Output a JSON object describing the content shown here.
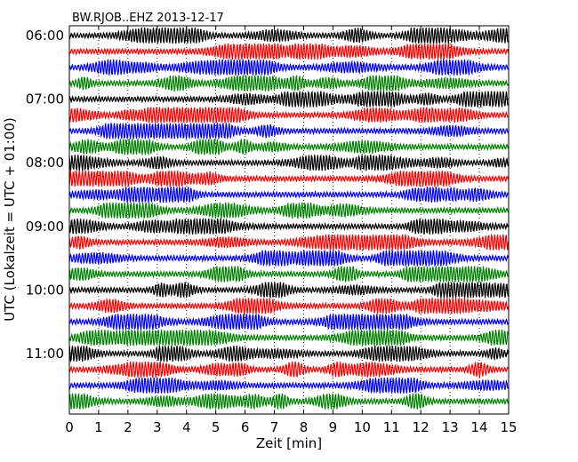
{
  "chart_data": {
    "type": "line",
    "title": "BW.RJOB..EHZ 2013-12-17",
    "xlabel": "Zeit  [min]",
    "ylabel": "UTC (Lokalzeit = UTC + 01:00)",
    "xlim": [
      0,
      15
    ],
    "x_ticks": [
      "0",
      "1",
      "2",
      "3",
      "4",
      "5",
      "6",
      "7",
      "8",
      "9",
      "10",
      "11",
      "12",
      "13",
      "14",
      "15"
    ],
    "y_ticks": [
      "06:00",
      "07:00",
      "08:00",
      "09:00",
      "10:00",
      "11:00"
    ],
    "grid": true,
    "series_colors": [
      "#000000",
      "#ff0000",
      "#0000ff",
      "#008000"
    ],
    "traces": [
      {
        "start": "06:00",
        "color": "#000000"
      },
      {
        "start": "06:15",
        "color": "#ff0000"
      },
      {
        "start": "06:30",
        "color": "#0000ff"
      },
      {
        "start": "06:45",
        "color": "#008000"
      },
      {
        "start": "07:00",
        "color": "#000000"
      },
      {
        "start": "07:15",
        "color": "#ff0000"
      },
      {
        "start": "07:30",
        "color": "#0000ff"
      },
      {
        "start": "07:45",
        "color": "#008000"
      },
      {
        "start": "08:00",
        "color": "#000000"
      },
      {
        "start": "08:15",
        "color": "#ff0000"
      },
      {
        "start": "08:30",
        "color": "#0000ff"
      },
      {
        "start": "08:45",
        "color": "#008000"
      },
      {
        "start": "09:00",
        "color": "#000000"
      },
      {
        "start": "09:15",
        "color": "#ff0000"
      },
      {
        "start": "09:30",
        "color": "#0000ff"
      },
      {
        "start": "09:45",
        "color": "#008000"
      },
      {
        "start": "10:00",
        "color": "#000000"
      },
      {
        "start": "10:15",
        "color": "#ff0000"
      },
      {
        "start": "10:30",
        "color": "#0000ff"
      },
      {
        "start": "10:45",
        "color": "#008000"
      },
      {
        "start": "11:00",
        "color": "#000000"
      },
      {
        "start": "11:15",
        "color": "#ff0000"
      },
      {
        "start": "11:30",
        "color": "#0000ff"
      },
      {
        "start": "11:45",
        "color": "#008000"
      }
    ]
  }
}
